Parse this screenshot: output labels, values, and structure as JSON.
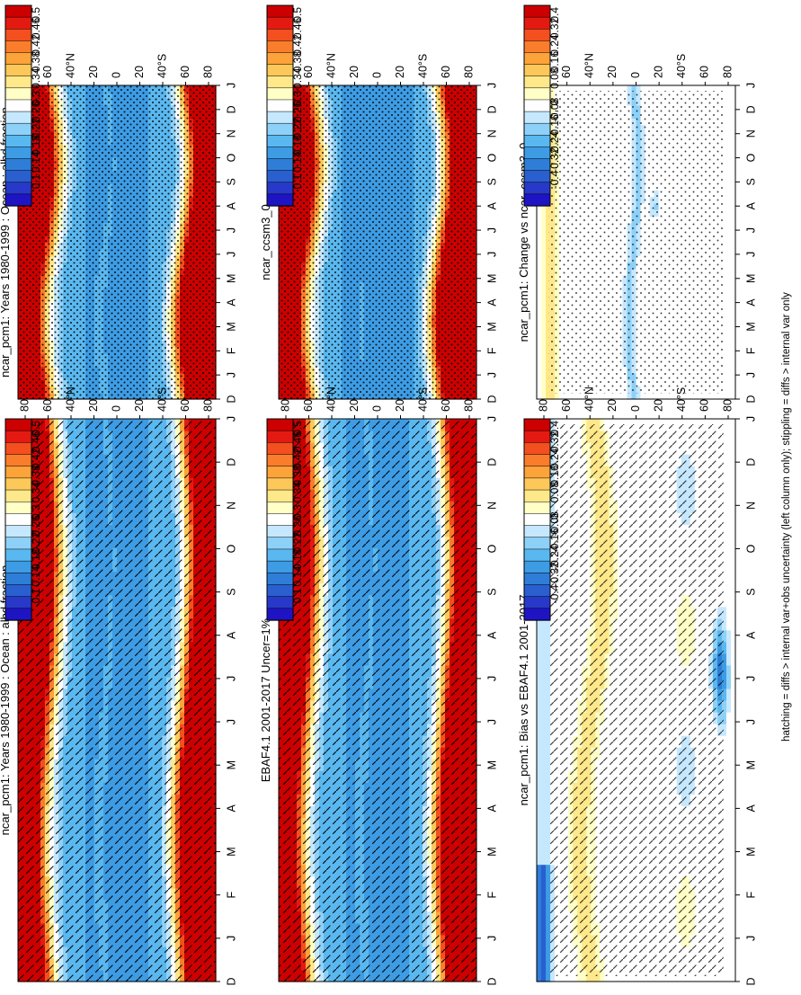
{
  "figure": {
    "footnote": "hatching = diffs > internal var+obs uncertainty (left column only); stippling = diffs > internal var only"
  },
  "colors": {
    "mean_scale": [
      "#cc0000",
      "#e41a12",
      "#f44f1e",
      "#fa7d2c",
      "#fca33a",
      "#fdc85a",
      "#fee88a",
      "#ffffc6",
      "#ffffff",
      "#c6e8ff",
      "#8ed1f8",
      "#5ab8f0",
      "#3d9ce4",
      "#2e7ed8",
      "#2a5fd0",
      "#2838c8",
      "#1e14c4"
    ],
    "diff_scale": [
      "#cc0000",
      "#e41a12",
      "#f44f1e",
      "#fa7d2c",
      "#fca33a",
      "#fdc85a",
      "#fee88a",
      "#ffffc6",
      "#ffffff",
      "#c6e8ff",
      "#8ed1f8",
      "#5ab8f0",
      "#3d9ce4",
      "#2e7ed8",
      "#2a5fd0",
      "#2838c8",
      "#1e14c4"
    ]
  },
  "chart_data": [
    {
      "type": "heatmap",
      "title": "ncar_pcm1: Years 1980-1999 : Ocean : albd fraction",
      "xlabel": "",
      "ylabel": "",
      "x_ticks": [
        "D",
        "J",
        "F",
        "M",
        "A",
        "M",
        "J",
        "J",
        "A",
        "S",
        "O",
        "N",
        "D",
        "J"
      ],
      "y_ticks": [
        "80",
        "60",
        "40",
        "20",
        "0",
        "20",
        "40",
        "60",
        "80"
      ],
      "y_tick_suffix": [
        "",
        "",
        "N",
        "",
        "",
        "",
        "S",
        "",
        ""
      ],
      "colorbar_labels": [
        "0.5",
        "0.46",
        "0.42",
        "0.38",
        "0.34",
        "0.3",
        "0.26",
        "0.22",
        "0.18",
        "0.14",
        "0.1"
      ],
      "overlay": "hatching"
    },
    {
      "type": "heatmap",
      "title": "ncar_pcm1: Years 1980-1999 : Ocean : albd fraction",
      "xlabel": "",
      "ylabel": "",
      "x_ticks": [
        "D",
        "J",
        "F",
        "M",
        "A",
        "M",
        "J",
        "J",
        "A",
        "S",
        "O",
        "N",
        "D",
        "J"
      ],
      "y_ticks": [
        "80",
        "60",
        "40",
        "20",
        "0",
        "20",
        "40",
        "60",
        "80"
      ],
      "y_tick_suffix": [
        "",
        "",
        "N",
        "",
        "",
        "",
        "S",
        "",
        ""
      ],
      "colorbar_labels": [
        "0.5",
        "0.46",
        "0.42",
        "0.38",
        "0.34",
        "0.3",
        "0.26",
        "0.22",
        "0.18",
        "0.14",
        "0.1"
      ],
      "overlay": "stippling"
    },
    {
      "type": "heatmap",
      "title": "EBAF4.1 2001-2017 Uncer=1%",
      "xlabel": "",
      "ylabel": "",
      "x_ticks": [
        "D",
        "J",
        "F",
        "M",
        "A",
        "M",
        "J",
        "J",
        "A",
        "S",
        "O",
        "N",
        "D",
        "J"
      ],
      "y_ticks": [
        "80",
        "60",
        "40",
        "20",
        "0",
        "20",
        "40",
        "60",
        "80"
      ],
      "y_tick_suffix": [
        "",
        "",
        "N",
        "",
        "",
        "",
        "S",
        "",
        ""
      ],
      "colorbar_labels": [
        "0.5",
        "0.46",
        "0.42",
        "0.38",
        "0.34",
        "0.3",
        "0.26",
        "0.22",
        "0.18",
        "0.14",
        "0.1"
      ],
      "overlay": "hatching"
    },
    {
      "type": "heatmap",
      "title": "ncar_ccsm3_0",
      "xlabel": "",
      "ylabel": "",
      "x_ticks": [
        "D",
        "J",
        "F",
        "M",
        "A",
        "M",
        "J",
        "J",
        "A",
        "S",
        "O",
        "N",
        "D",
        "J"
      ],
      "y_ticks": [
        "80",
        "60",
        "40",
        "20",
        "0",
        "20",
        "40",
        "60",
        "80"
      ],
      "y_tick_suffix": [
        "",
        "",
        "N",
        "",
        "",
        "",
        "S",
        "",
        ""
      ],
      "colorbar_labels": [
        "0.5",
        "0.46",
        "0.42",
        "0.38",
        "0.34",
        "0.3",
        "0.26",
        "0.22",
        "0.18",
        "0.14",
        "0.1"
      ],
      "overlay": "stippling"
    },
    {
      "type": "heatmap",
      "title": "ncar_pcm1: Bias vs EBAF4.1 2001-2017",
      "xlabel": "",
      "ylabel": "",
      "x_ticks": [
        "D",
        "J",
        "F",
        "M",
        "A",
        "M",
        "J",
        "J",
        "A",
        "S",
        "O",
        "N",
        "D",
        "J"
      ],
      "y_ticks": [
        "80",
        "60",
        "40",
        "20",
        "0",
        "20",
        "40",
        "60",
        "80"
      ],
      "y_tick_suffix": [
        "",
        "",
        "N",
        "",
        "",
        "",
        "S",
        "",
        ""
      ],
      "colorbar_labels": [
        "0.4",
        "0.32",
        "0.24",
        "0.16",
        "0.08",
        "0",
        "-0.08",
        "-0.16",
        "-0.24",
        "-0.32",
        "-0.4"
      ],
      "overlay": "hatching"
    },
    {
      "type": "heatmap",
      "title": "ncar_pcm1: Change vs ncar_ccsm3_0",
      "xlabel": "",
      "ylabel": "",
      "x_ticks": [
        "D",
        "J",
        "F",
        "M",
        "A",
        "M",
        "J",
        "J",
        "A",
        "S",
        "O",
        "N",
        "D",
        "J"
      ],
      "y_ticks": [
        "80",
        "60",
        "40",
        "20",
        "0",
        "20",
        "40",
        "60",
        "80"
      ],
      "y_tick_suffix": [
        "",
        "",
        "N",
        "",
        "",
        "",
        "S",
        "",
        ""
      ],
      "colorbar_labels": [
        "0.4",
        "0.32",
        "0.24",
        "0.16",
        "0.08",
        "0",
        "-0.08",
        "-0.16",
        "-0.24",
        "-0.32",
        "-0.4"
      ],
      "overlay": "stippling"
    }
  ]
}
